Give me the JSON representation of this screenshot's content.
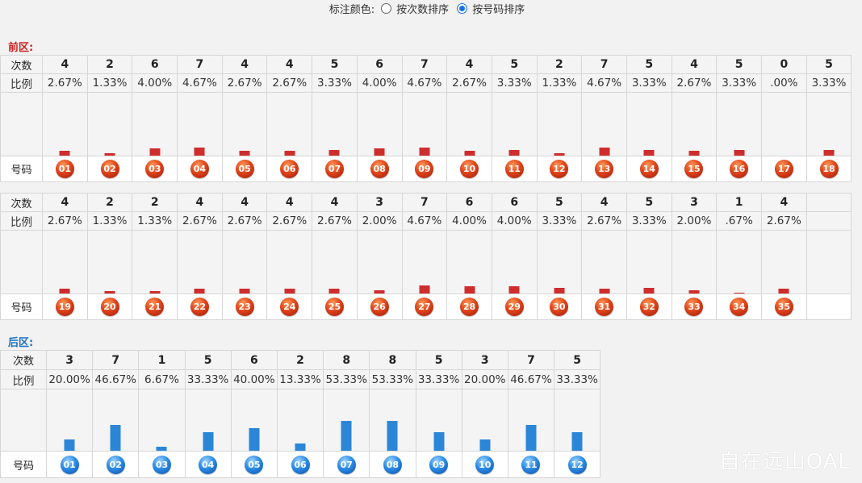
{
  "options": {
    "label": "标注颜色:",
    "radios": [
      {
        "label": "按次数排序",
        "checked": false
      },
      {
        "label": "按号码排序",
        "checked": true
      }
    ]
  },
  "front": {
    "title": "前区:",
    "row_labels": {
      "count": "次数",
      "ratio": "比例",
      "number": "号码"
    },
    "bar_color": "#cf2d2d",
    "groups": [
      {
        "counts": [
          "4",
          "2",
          "6",
          "7",
          "4",
          "4",
          "5",
          "6",
          "7",
          "4",
          "5",
          "2",
          "7",
          "5",
          "4",
          "5",
          "0",
          "5"
        ],
        "ratios": [
          "2.67%",
          "1.33%",
          "4.00%",
          "4.67%",
          "2.67%",
          "2.67%",
          "3.33%",
          "4.00%",
          "4.67%",
          "2.67%",
          "3.33%",
          "1.33%",
          "4.67%",
          "3.33%",
          "2.67%",
          "3.33%",
          ".00%",
          "3.33%"
        ],
        "numbers": [
          "01",
          "02",
          "03",
          "04",
          "05",
          "06",
          "07",
          "08",
          "09",
          "10",
          "11",
          "12",
          "13",
          "14",
          "15",
          "16",
          "17",
          "18"
        ]
      },
      {
        "counts": [
          "4",
          "2",
          "2",
          "4",
          "4",
          "4",
          "4",
          "3",
          "7",
          "6",
          "6",
          "5",
          "4",
          "5",
          "3",
          "1",
          "4",
          ""
        ],
        "ratios": [
          "2.67%",
          "1.33%",
          "1.33%",
          "2.67%",
          "2.67%",
          "2.67%",
          "2.67%",
          "2.00%",
          "4.67%",
          "4.00%",
          "4.00%",
          "3.33%",
          "2.67%",
          "3.33%",
          "2.00%",
          ".67%",
          "2.67%",
          ""
        ],
        "numbers": [
          "19",
          "20",
          "21",
          "22",
          "23",
          "24",
          "25",
          "26",
          "27",
          "28",
          "29",
          "30",
          "31",
          "32",
          "33",
          "34",
          "35",
          ""
        ]
      }
    ]
  },
  "back": {
    "title": "后区:",
    "row_labels": {
      "count": "次数",
      "ratio": "比例",
      "number": "号码"
    },
    "bar_color": "#2b86d8",
    "counts": [
      "3",
      "7",
      "1",
      "5",
      "6",
      "2",
      "8",
      "8",
      "5",
      "3",
      "7",
      "5"
    ],
    "ratios": [
      "20.00%",
      "46.67%",
      "6.67%",
      "33.33%",
      "40.00%",
      "13.33%",
      "53.33%",
      "53.33%",
      "33.33%",
      "20.00%",
      "46.67%",
      "33.33%"
    ],
    "numbers": [
      "01",
      "02",
      "03",
      "04",
      "05",
      "06",
      "07",
      "08",
      "09",
      "10",
      "11",
      "12"
    ]
  },
  "watermark": "自在远山OAL"
}
